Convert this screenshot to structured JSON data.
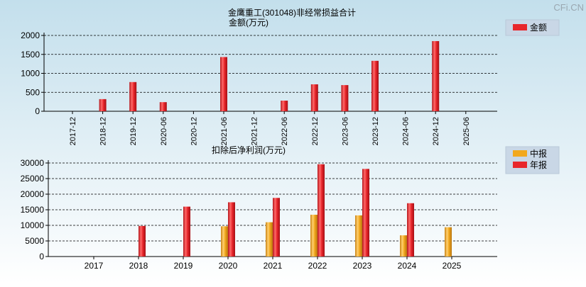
{
  "watermark": "CFi.CN",
  "colors": {
    "bg_top": "#c3dfec",
    "bg_bottom": "#ffffff",
    "annual": "#e8262b",
    "interim": "#f2a81d",
    "axis": "#000000"
  },
  "chart_data": [
    {
      "type": "bar",
      "title": "金鹰重工(301048)非经常损益合计",
      "ylabel": "金额(万元)",
      "xlabel": "",
      "ylim": [
        0,
        2000
      ],
      "yticks": [
        0,
        500,
        1000,
        1500,
        2000
      ],
      "grid": true,
      "legend_position": "top-right",
      "categories": [
        "2017-12",
        "2018-12",
        "2019-12",
        "2020-06",
        "2020-12",
        "2021-06",
        "2021-12",
        "2022-06",
        "2022-12",
        "2023-06",
        "2023-12",
        "2024-06",
        "2024-12",
        "2025-06"
      ],
      "series": [
        {
          "name": "金额",
          "values": [
            null,
            320,
            770,
            240,
            null,
            1430,
            null,
            280,
            710,
            690,
            1330,
            null,
            1850,
            null
          ]
        }
      ]
    },
    {
      "type": "bar",
      "title": "扣除后净利润(万元)",
      "xlabel": "",
      "ylabel": "",
      "ylim": [
        0,
        30000
      ],
      "yticks": [
        0,
        5000,
        10000,
        15000,
        20000,
        25000,
        30000
      ],
      "grid": true,
      "legend_position": "top-right",
      "categories": [
        "2017",
        "2018",
        "2019",
        "2020",
        "2021",
        "2022",
        "2023",
        "2024",
        "2025"
      ],
      "series": [
        {
          "name": "中报",
          "values": [
            null,
            null,
            null,
            9700,
            11000,
            13400,
            13200,
            6800,
            9400
          ]
        },
        {
          "name": "年报",
          "values": [
            null,
            9800,
            16000,
            17400,
            18800,
            29600,
            28100,
            17100,
            null
          ]
        }
      ]
    }
  ]
}
